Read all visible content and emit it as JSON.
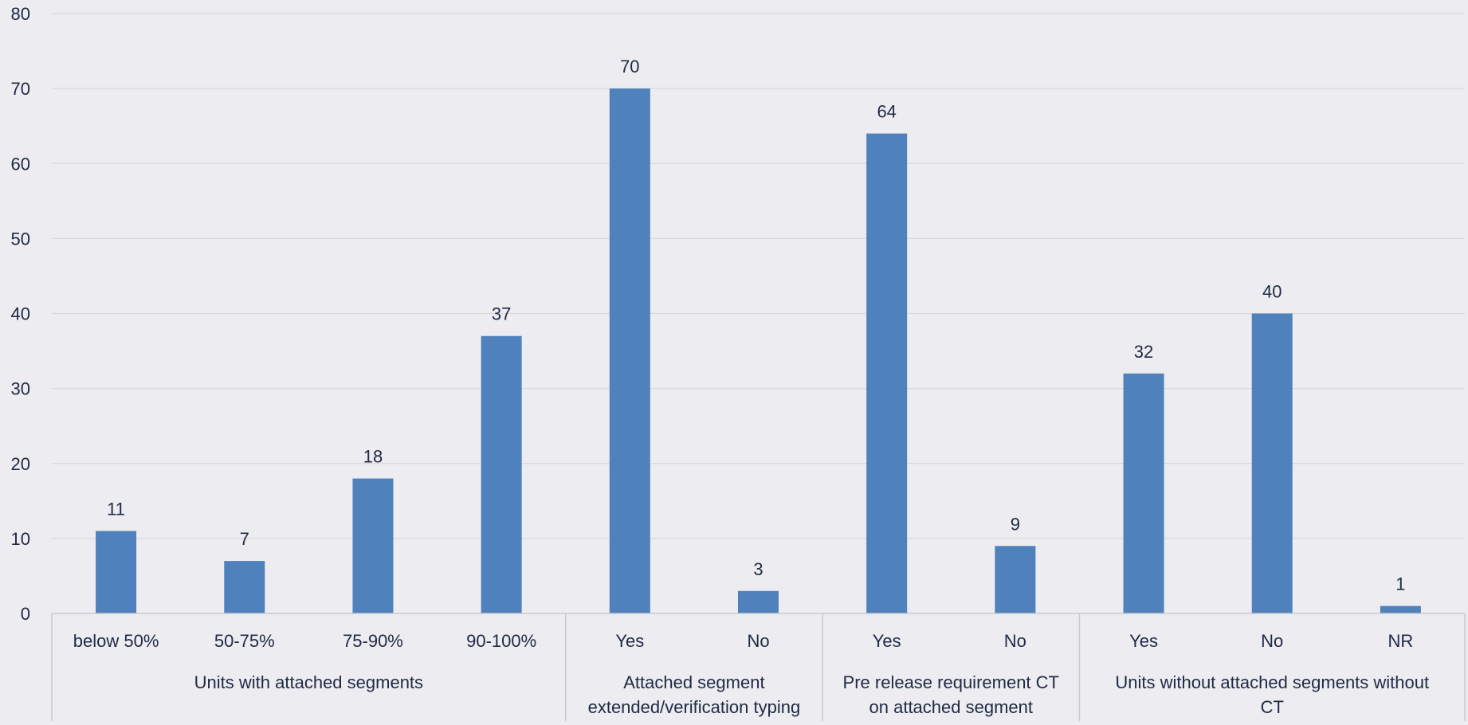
{
  "chart_data": {
    "type": "bar",
    "categories": [
      "below 50%",
      "50-75%",
      "75-90%",
      "90-100%",
      "Yes",
      "No",
      "Yes",
      "No",
      "Yes",
      "No",
      "NR"
    ],
    "groups": [
      {
        "label": "Units with attached segments",
        "start": 0,
        "count": 4,
        "lines": [
          "Units with attached segments"
        ]
      },
      {
        "label": "Attached segment extended/verification typing",
        "start": 4,
        "count": 2,
        "lines": [
          "Attached segment",
          "extended/verification typing"
        ]
      },
      {
        "label": "Pre release requirement CT on attached segment",
        "start": 6,
        "count": 2,
        "lines": [
          "Pre release requirement CT",
          "on attached segment"
        ]
      },
      {
        "label": "Units without attached segments without CT",
        "start": 8,
        "count": 3,
        "lines": [
          "Units without attached segments without",
          "CT"
        ]
      }
    ],
    "series": [
      {
        "values": [
          11,
          7,
          18,
          37,
          70,
          3,
          64,
          9,
          32,
          40,
          1
        ]
      }
    ],
    "title": "",
    "xlabel": "",
    "ylabel": "",
    "ylim": [
      0,
      80
    ],
    "yticks": [
      0,
      10,
      20,
      30,
      40,
      50,
      60,
      70,
      80
    ],
    "grid": true,
    "data_labels": true,
    "bar_color": "#4f81bd",
    "grid_color": "#d9d9d9",
    "background": "#edecf0"
  }
}
